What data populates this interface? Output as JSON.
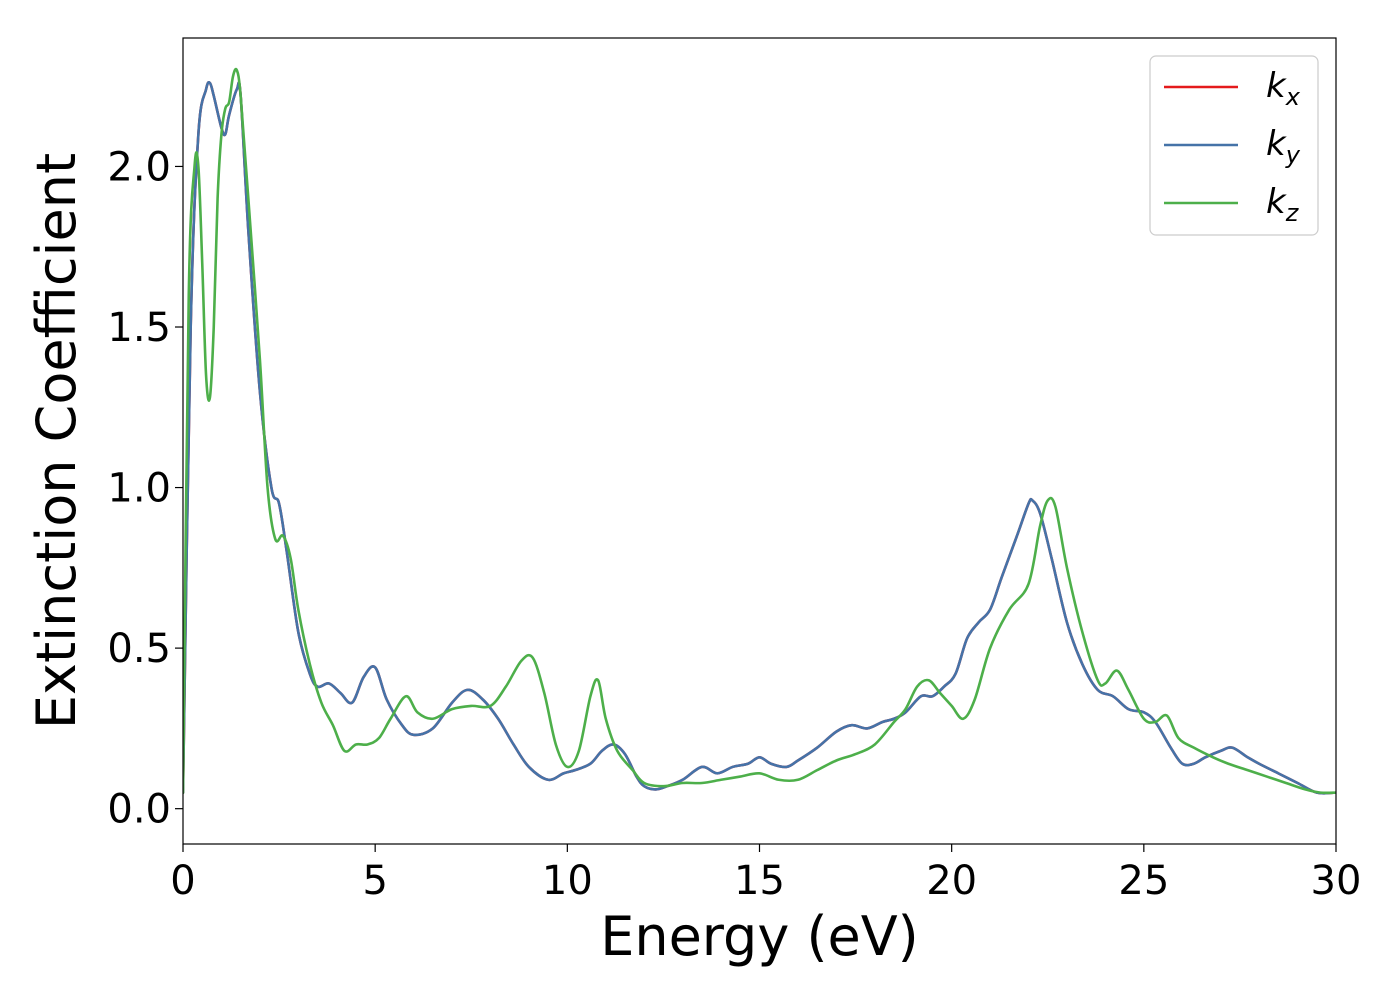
{
  "chart_data": {
    "type": "line",
    "title": "",
    "xlabel": "Energy (eV)",
    "ylabel": "Extinction Coefficient",
    "xlim": [
      0,
      30
    ],
    "ylim": [
      -0.11,
      2.4
    ],
    "xticks": [
      0,
      5,
      10,
      15,
      20,
      25,
      30
    ],
    "xtick_labels": [
      "0",
      "5",
      "10",
      "15",
      "20",
      "25",
      "30"
    ],
    "yticks": [
      0.0,
      0.5,
      1.0,
      1.5,
      2.0
    ],
    "ytick_labels": [
      "0.0",
      "0.5",
      "1.0",
      "1.5",
      "2.0"
    ],
    "grid": false,
    "legend_position": "top-right",
    "series": [
      {
        "name": "kx",
        "label_base": "k",
        "label_sub": "x",
        "color": "#e41a1c",
        "x": [
          0,
          0.2,
          0.4,
          0.6,
          0.7,
          0.8,
          1.0,
          1.1,
          1.2,
          1.4,
          1.5,
          1.7,
          2.0,
          2.3,
          2.5,
          2.7,
          3.0,
          3.3,
          3.5,
          3.8,
          4.1,
          4.4,
          4.7,
          5.0,
          5.3,
          5.7,
          6.0,
          6.5,
          7.0,
          7.4,
          7.8,
          8.2,
          8.6,
          9.0,
          9.5,
          9.9,
          10.2,
          10.6,
          10.9,
          11.2,
          11.5,
          11.8,
          12.0,
          12.3,
          12.6,
          13.0,
          13.5,
          13.9,
          14.3,
          14.7,
          15.0,
          15.3,
          15.7,
          16.0,
          16.5,
          17.0,
          17.4,
          17.8,
          18.2,
          18.5,
          18.8,
          19.2,
          19.5,
          19.8,
          20.1,
          20.4,
          20.7,
          21.0,
          21.3,
          21.7,
          22.0,
          22.1,
          22.3,
          22.6,
          23.0,
          23.4,
          23.8,
          24.2,
          24.6,
          25.0,
          25.3,
          25.7,
          26.0,
          26.3,
          26.6,
          27.0,
          27.3,
          27.7,
          28.0,
          28.5,
          29.0,
          29.5,
          30.0
        ],
        "y": [
          0.05,
          1.5,
          2.1,
          2.24,
          2.26,
          2.22,
          2.12,
          2.1,
          2.16,
          2.24,
          2.22,
          1.8,
          1.3,
          1.0,
          0.95,
          0.8,
          0.55,
          0.42,
          0.38,
          0.39,
          0.36,
          0.33,
          0.41,
          0.44,
          0.34,
          0.26,
          0.23,
          0.25,
          0.33,
          0.37,
          0.34,
          0.28,
          0.2,
          0.13,
          0.09,
          0.11,
          0.12,
          0.14,
          0.18,
          0.2,
          0.17,
          0.1,
          0.07,
          0.06,
          0.07,
          0.09,
          0.13,
          0.11,
          0.13,
          0.14,
          0.16,
          0.14,
          0.13,
          0.15,
          0.19,
          0.24,
          0.26,
          0.25,
          0.27,
          0.28,
          0.3,
          0.35,
          0.35,
          0.38,
          0.42,
          0.53,
          0.58,
          0.62,
          0.72,
          0.85,
          0.95,
          0.96,
          0.92,
          0.78,
          0.58,
          0.45,
          0.37,
          0.35,
          0.31,
          0.3,
          0.27,
          0.19,
          0.14,
          0.14,
          0.16,
          0.18,
          0.19,
          0.16,
          0.14,
          0.11,
          0.08,
          0.05,
          0.05
        ]
      },
      {
        "name": "ky",
        "label_base": "k",
        "label_sub": "y",
        "color": "#4573a8",
        "x": [
          0,
          0.2,
          0.4,
          0.6,
          0.7,
          0.8,
          1.0,
          1.1,
          1.2,
          1.4,
          1.5,
          1.7,
          2.0,
          2.3,
          2.5,
          2.7,
          3.0,
          3.3,
          3.5,
          3.8,
          4.1,
          4.4,
          4.7,
          5.0,
          5.3,
          5.7,
          6.0,
          6.5,
          7.0,
          7.4,
          7.8,
          8.2,
          8.6,
          9.0,
          9.5,
          9.9,
          10.2,
          10.6,
          10.9,
          11.2,
          11.5,
          11.8,
          12.0,
          12.3,
          12.6,
          13.0,
          13.5,
          13.9,
          14.3,
          14.7,
          15.0,
          15.3,
          15.7,
          16.0,
          16.5,
          17.0,
          17.4,
          17.8,
          18.2,
          18.5,
          18.8,
          19.2,
          19.5,
          19.8,
          20.1,
          20.4,
          20.7,
          21.0,
          21.3,
          21.7,
          22.0,
          22.1,
          22.3,
          22.6,
          23.0,
          23.4,
          23.8,
          24.2,
          24.6,
          25.0,
          25.3,
          25.7,
          26.0,
          26.3,
          26.6,
          27.0,
          27.3,
          27.7,
          28.0,
          28.5,
          29.0,
          29.5,
          30.0
        ],
        "y": [
          0.05,
          1.5,
          2.1,
          2.24,
          2.26,
          2.22,
          2.12,
          2.1,
          2.16,
          2.24,
          2.22,
          1.8,
          1.3,
          1.0,
          0.95,
          0.8,
          0.55,
          0.42,
          0.38,
          0.39,
          0.36,
          0.33,
          0.41,
          0.44,
          0.34,
          0.26,
          0.23,
          0.25,
          0.33,
          0.37,
          0.34,
          0.28,
          0.2,
          0.13,
          0.09,
          0.11,
          0.12,
          0.14,
          0.18,
          0.2,
          0.17,
          0.1,
          0.07,
          0.06,
          0.07,
          0.09,
          0.13,
          0.11,
          0.13,
          0.14,
          0.16,
          0.14,
          0.13,
          0.15,
          0.19,
          0.24,
          0.26,
          0.25,
          0.27,
          0.28,
          0.3,
          0.35,
          0.35,
          0.38,
          0.42,
          0.53,
          0.58,
          0.62,
          0.72,
          0.85,
          0.95,
          0.96,
          0.92,
          0.78,
          0.58,
          0.45,
          0.37,
          0.35,
          0.31,
          0.3,
          0.27,
          0.19,
          0.14,
          0.14,
          0.16,
          0.18,
          0.19,
          0.16,
          0.14,
          0.11,
          0.08,
          0.05,
          0.05
        ]
      },
      {
        "name": "kz",
        "label_base": "k",
        "label_sub": "z",
        "color": "#4daf4a",
        "x": [
          0,
          0.15,
          0.3,
          0.4,
          0.5,
          0.6,
          0.7,
          0.8,
          0.9,
          1.0,
          1.1,
          1.2,
          1.3,
          1.4,
          1.5,
          1.7,
          2.0,
          2.2,
          2.4,
          2.6,
          2.8,
          3.0,
          3.3,
          3.6,
          3.9,
          4.2,
          4.5,
          4.8,
          5.1,
          5.4,
          5.8,
          6.1,
          6.5,
          7.0,
          7.5,
          8.0,
          8.4,
          8.8,
          9.1,
          9.4,
          9.7,
          10.0,
          10.3,
          10.6,
          10.8,
          11.0,
          11.3,
          11.7,
          12.0,
          12.5,
          13.0,
          13.5,
          14.0,
          14.5,
          15.0,
          15.5,
          16.0,
          16.5,
          17.0,
          17.5,
          18.0,
          18.5,
          18.8,
          19.1,
          19.4,
          19.7,
          20.0,
          20.3,
          20.6,
          21.0,
          21.5,
          22.0,
          22.3,
          22.5,
          22.7,
          23.0,
          23.4,
          23.8,
          24.0,
          24.3,
          24.6,
          25.0,
          25.3,
          25.6,
          25.9,
          26.3,
          26.8,
          27.2,
          27.7,
          28.2,
          28.7,
          29.2,
          29.6,
          30.0
        ],
        "y": [
          0.05,
          1.6,
          2.0,
          2.0,
          1.7,
          1.35,
          1.28,
          1.5,
          1.9,
          2.1,
          2.18,
          2.2,
          2.28,
          2.3,
          2.22,
          1.9,
          1.4,
          1.0,
          0.84,
          0.85,
          0.78,
          0.62,
          0.45,
          0.33,
          0.26,
          0.18,
          0.2,
          0.2,
          0.22,
          0.28,
          0.35,
          0.3,
          0.28,
          0.31,
          0.32,
          0.32,
          0.38,
          0.46,
          0.47,
          0.36,
          0.2,
          0.13,
          0.18,
          0.35,
          0.4,
          0.28,
          0.18,
          0.12,
          0.08,
          0.07,
          0.08,
          0.08,
          0.09,
          0.1,
          0.11,
          0.09,
          0.09,
          0.12,
          0.15,
          0.17,
          0.2,
          0.27,
          0.31,
          0.38,
          0.4,
          0.36,
          0.32,
          0.28,
          0.34,
          0.5,
          0.62,
          0.7,
          0.88,
          0.96,
          0.94,
          0.75,
          0.55,
          0.4,
          0.39,
          0.43,
          0.37,
          0.28,
          0.27,
          0.29,
          0.22,
          0.19,
          0.16,
          0.14,
          0.12,
          0.1,
          0.08,
          0.06,
          0.05,
          0.05
        ]
      }
    ]
  }
}
